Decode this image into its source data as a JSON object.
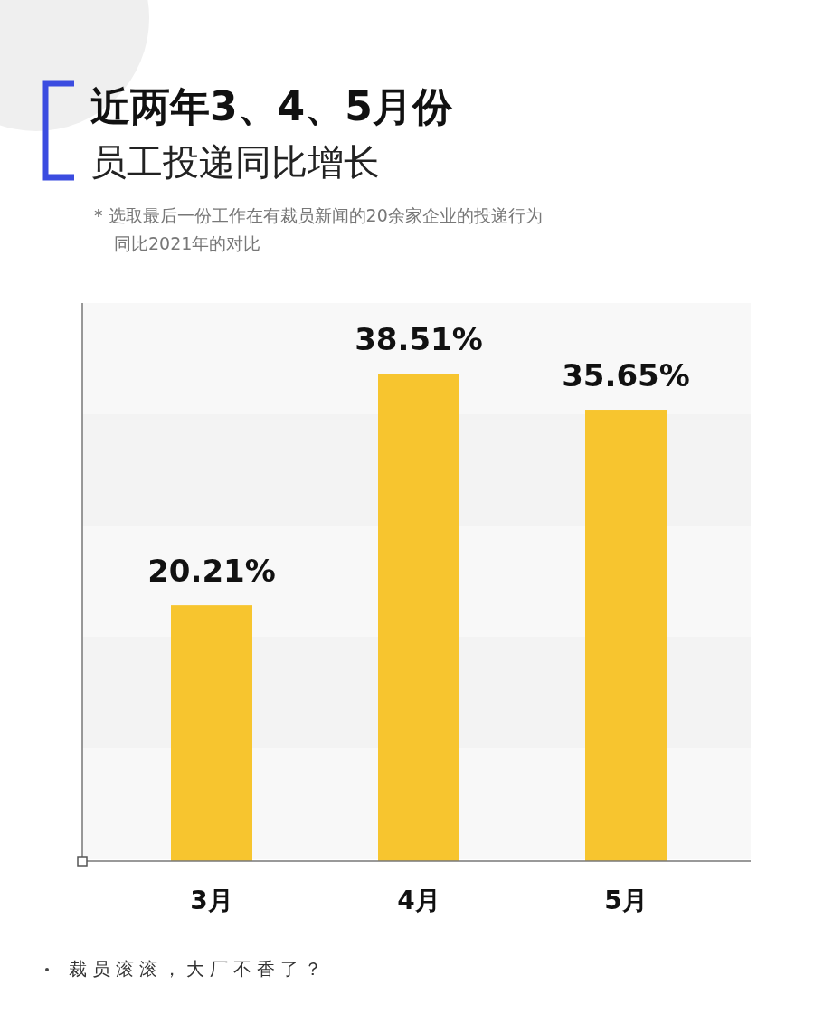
{
  "chart_data": {
    "type": "bar",
    "title": "近两年3、4、5月份",
    "subtitle": "员工投递同比增长",
    "annotations": [
      "* 选取最后一份工作在有裁员新闻的20余家企业的投递行为同比2021年的对比",
      "裁员滚滚，大厂不香了？"
    ],
    "categories": [
      "3月",
      "4月",
      "5月"
    ],
    "values": [
      20.21,
      38.51,
      35.65
    ],
    "value_labels": [
      "20.21%",
      "38.51%",
      "35.65%"
    ],
    "color": "#f7c52f"
  }
}
